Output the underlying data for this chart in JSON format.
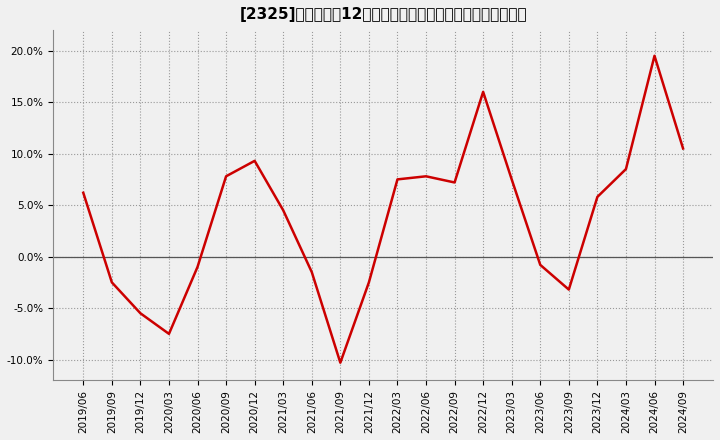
{
  "title": "[2325]　売上高の12か月移動合計の対前年同期増減率の推移",
  "dates": [
    "2019/06",
    "2019/09",
    "2019/12",
    "2020/03",
    "2020/06",
    "2020/09",
    "2020/12",
    "2021/03",
    "2021/06",
    "2021/09",
    "2021/12",
    "2022/03",
    "2022/06",
    "2022/09",
    "2022/12",
    "2023/03",
    "2023/06",
    "2023/09",
    "2023/12",
    "2024/03",
    "2024/06",
    "2024/09"
  ],
  "values": [
    6.2,
    -2.5,
    -5.5,
    -7.5,
    -1.0,
    7.8,
    9.3,
    4.5,
    -1.5,
    -10.3,
    -2.5,
    7.5,
    7.8,
    7.2,
    16.0,
    7.5,
    -0.8,
    -3.2,
    5.8,
    8.5,
    19.5,
    10.5
  ],
  "line_color": "#cc0000",
  "line_width": 1.8,
  "ylim": [
    -12.0,
    22.0
  ],
  "yticks": [
    -10.0,
    -5.0,
    0.0,
    5.0,
    10.0,
    15.0,
    20.0
  ],
  "ytick_labels": [
    "-10.0%",
    "-5.0%",
    "0.0%",
    "5.0%",
    "10.0%",
    "15.0%",
    "20.0%"
  ],
  "background_color": "#f0f0f0",
  "plot_bg_color": "#f0f0f0",
  "grid_color": "#999999",
  "zero_line_color": "#555555",
  "tick_label_fontsize": 7.5,
  "title_fontsize": 11
}
